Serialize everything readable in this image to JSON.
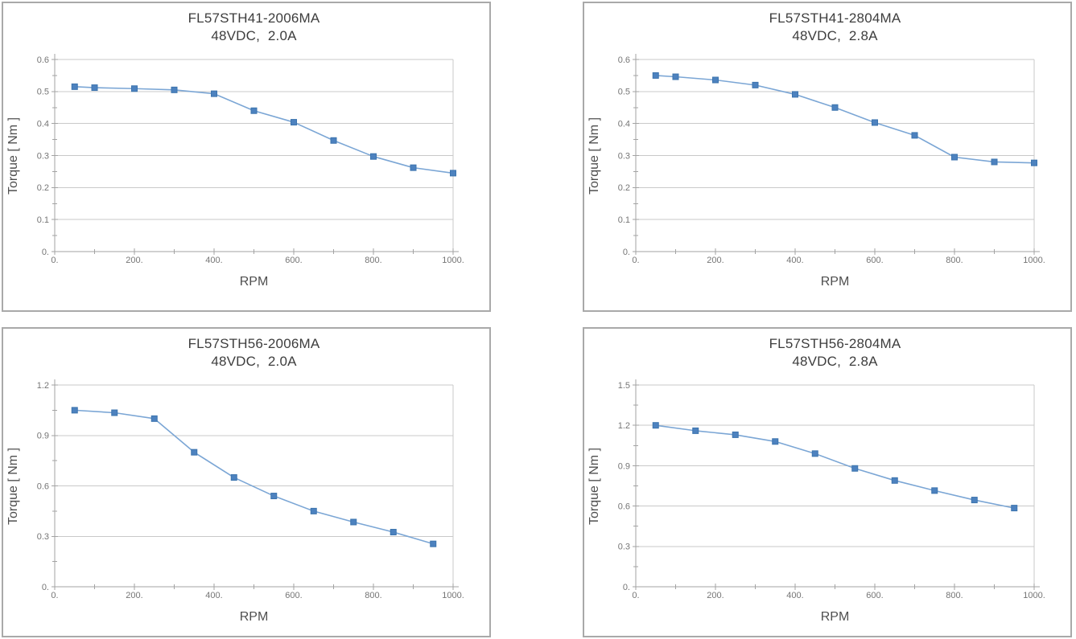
{
  "style": {
    "box_border_color": "#a9a9a9",
    "grid_color": "#c9c9c9",
    "axis_color": "#a3a3a3",
    "tick_label_color": "#757575",
    "title_color": "#3d3d3d",
    "line_color": "#7ba6d5",
    "marker_fill": "#4d82bf",
    "marker_border": "#3c74ae",
    "background": "#ffffff"
  },
  "chart_data": [
    {
      "type": "line",
      "title": "FL57STH41-2006MA",
      "subtitle": "48VDC,  2.0A",
      "xlabel": "RPM",
      "ylabel": "Torque [ Nm ]",
      "xlim": [
        0,
        1000
      ],
      "ylim": [
        0,
        0.6
      ],
      "x_major_ticks": [
        0,
        200,
        400,
        600,
        800,
        1000
      ],
      "x_tick_labels": [
        "0.",
        "200.",
        "400.",
        "600.",
        "800.",
        "1000."
      ],
      "x_minor_step": 100,
      "y_major_ticks": [
        0,
        0.1,
        0.2,
        0.3,
        0.4,
        0.5,
        0.6
      ],
      "y_tick_labels": [
        "0.",
        "0.1",
        "0.2",
        "0.3",
        "0.4",
        "0.5",
        "0.6"
      ],
      "y_minor_step": 0.05,
      "grid": "horizontal-major",
      "legend": "none",
      "series": [
        {
          "x": [
            50,
            100,
            200,
            300,
            400,
            500,
            600,
            700,
            800,
            900,
            1000
          ],
          "y": [
            0.515,
            0.512,
            0.509,
            0.505,
            0.493,
            0.44,
            0.404,
            0.347,
            0.297,
            0.262,
            0.245
          ]
        }
      ]
    },
    {
      "type": "line",
      "title": "FL57STH41-2804MA",
      "subtitle": "48VDC,  2.8A",
      "xlabel": "RPM",
      "ylabel": "Torque [ Nm ]",
      "xlim": [
        0,
        1000
      ],
      "ylim": [
        0,
        0.6
      ],
      "x_major_ticks": [
        0,
        200,
        400,
        600,
        800,
        1000
      ],
      "x_tick_labels": [
        "0.",
        "200.",
        "400.",
        "600.",
        "800.",
        "1000."
      ],
      "x_minor_step": 100,
      "y_major_ticks": [
        0,
        0.1,
        0.2,
        0.3,
        0.4,
        0.5,
        0.6
      ],
      "y_tick_labels": [
        "0.",
        "0.1",
        "0.2",
        "0.3",
        "0.4",
        "0.5",
        "0.6"
      ],
      "y_minor_step": 0.05,
      "grid": "horizontal-major",
      "legend": "none",
      "series": [
        {
          "x": [
            50,
            100,
            200,
            300,
            400,
            500,
            600,
            700,
            800,
            900,
            1000
          ],
          "y": [
            0.55,
            0.546,
            0.536,
            0.52,
            0.491,
            0.45,
            0.403,
            0.363,
            0.295,
            0.28,
            0.277
          ]
        }
      ]
    },
    {
      "type": "line",
      "title": "FL57STH56-2006MA",
      "subtitle": "48VDC,  2.0A",
      "xlabel": "RPM",
      "ylabel": "Torque [ Nm ]",
      "xlim": [
        0,
        1000
      ],
      "ylim": [
        0,
        1.2
      ],
      "x_major_ticks": [
        0,
        200,
        400,
        600,
        800,
        1000
      ],
      "x_tick_labels": [
        "0.",
        "200.",
        "400.",
        "600.",
        "800.",
        "1000."
      ],
      "x_minor_step": 100,
      "y_major_ticks": [
        0,
        0.3,
        0.6,
        0.9,
        1.2
      ],
      "y_tick_labels": [
        "0.",
        "0.3",
        "0.6",
        "0.9",
        "1.2"
      ],
      "y_minor_step": 0.15,
      "grid": "horizontal-major",
      "legend": "none",
      "series": [
        {
          "x": [
            50,
            150,
            250,
            350,
            450,
            550,
            650,
            750,
            850,
            950
          ],
          "y": [
            1.05,
            1.035,
            1.0,
            0.8,
            0.65,
            0.54,
            0.45,
            0.385,
            0.325,
            0.255
          ]
        }
      ]
    },
    {
      "type": "line",
      "title": "FL57STH56-2804MA",
      "subtitle": "48VDC,  2.8A",
      "xlabel": "RPM",
      "ylabel": "Torque [ Nm ]",
      "xlim": [
        0,
        1000
      ],
      "ylim": [
        0,
        1.5
      ],
      "x_major_ticks": [
        0,
        200,
        400,
        600,
        800,
        1000
      ],
      "x_tick_labels": [
        "0.",
        "200.",
        "400.",
        "600.",
        "800.",
        "1000."
      ],
      "x_minor_step": 100,
      "y_major_ticks": [
        0,
        0.3,
        0.6,
        0.9,
        1.2,
        1.5
      ],
      "y_tick_labels": [
        "0.",
        "0.3",
        "0.6",
        "0.9",
        "1.2",
        "1.5"
      ],
      "y_minor_step": 0.15,
      "grid": "horizontal-major",
      "legend": "none",
      "series": [
        {
          "x": [
            50,
            150,
            250,
            350,
            450,
            550,
            650,
            750,
            850,
            950
          ],
          "y": [
            1.2,
            1.16,
            1.13,
            1.08,
            0.99,
            0.88,
            0.79,
            0.715,
            0.645,
            0.585
          ]
        }
      ]
    }
  ]
}
